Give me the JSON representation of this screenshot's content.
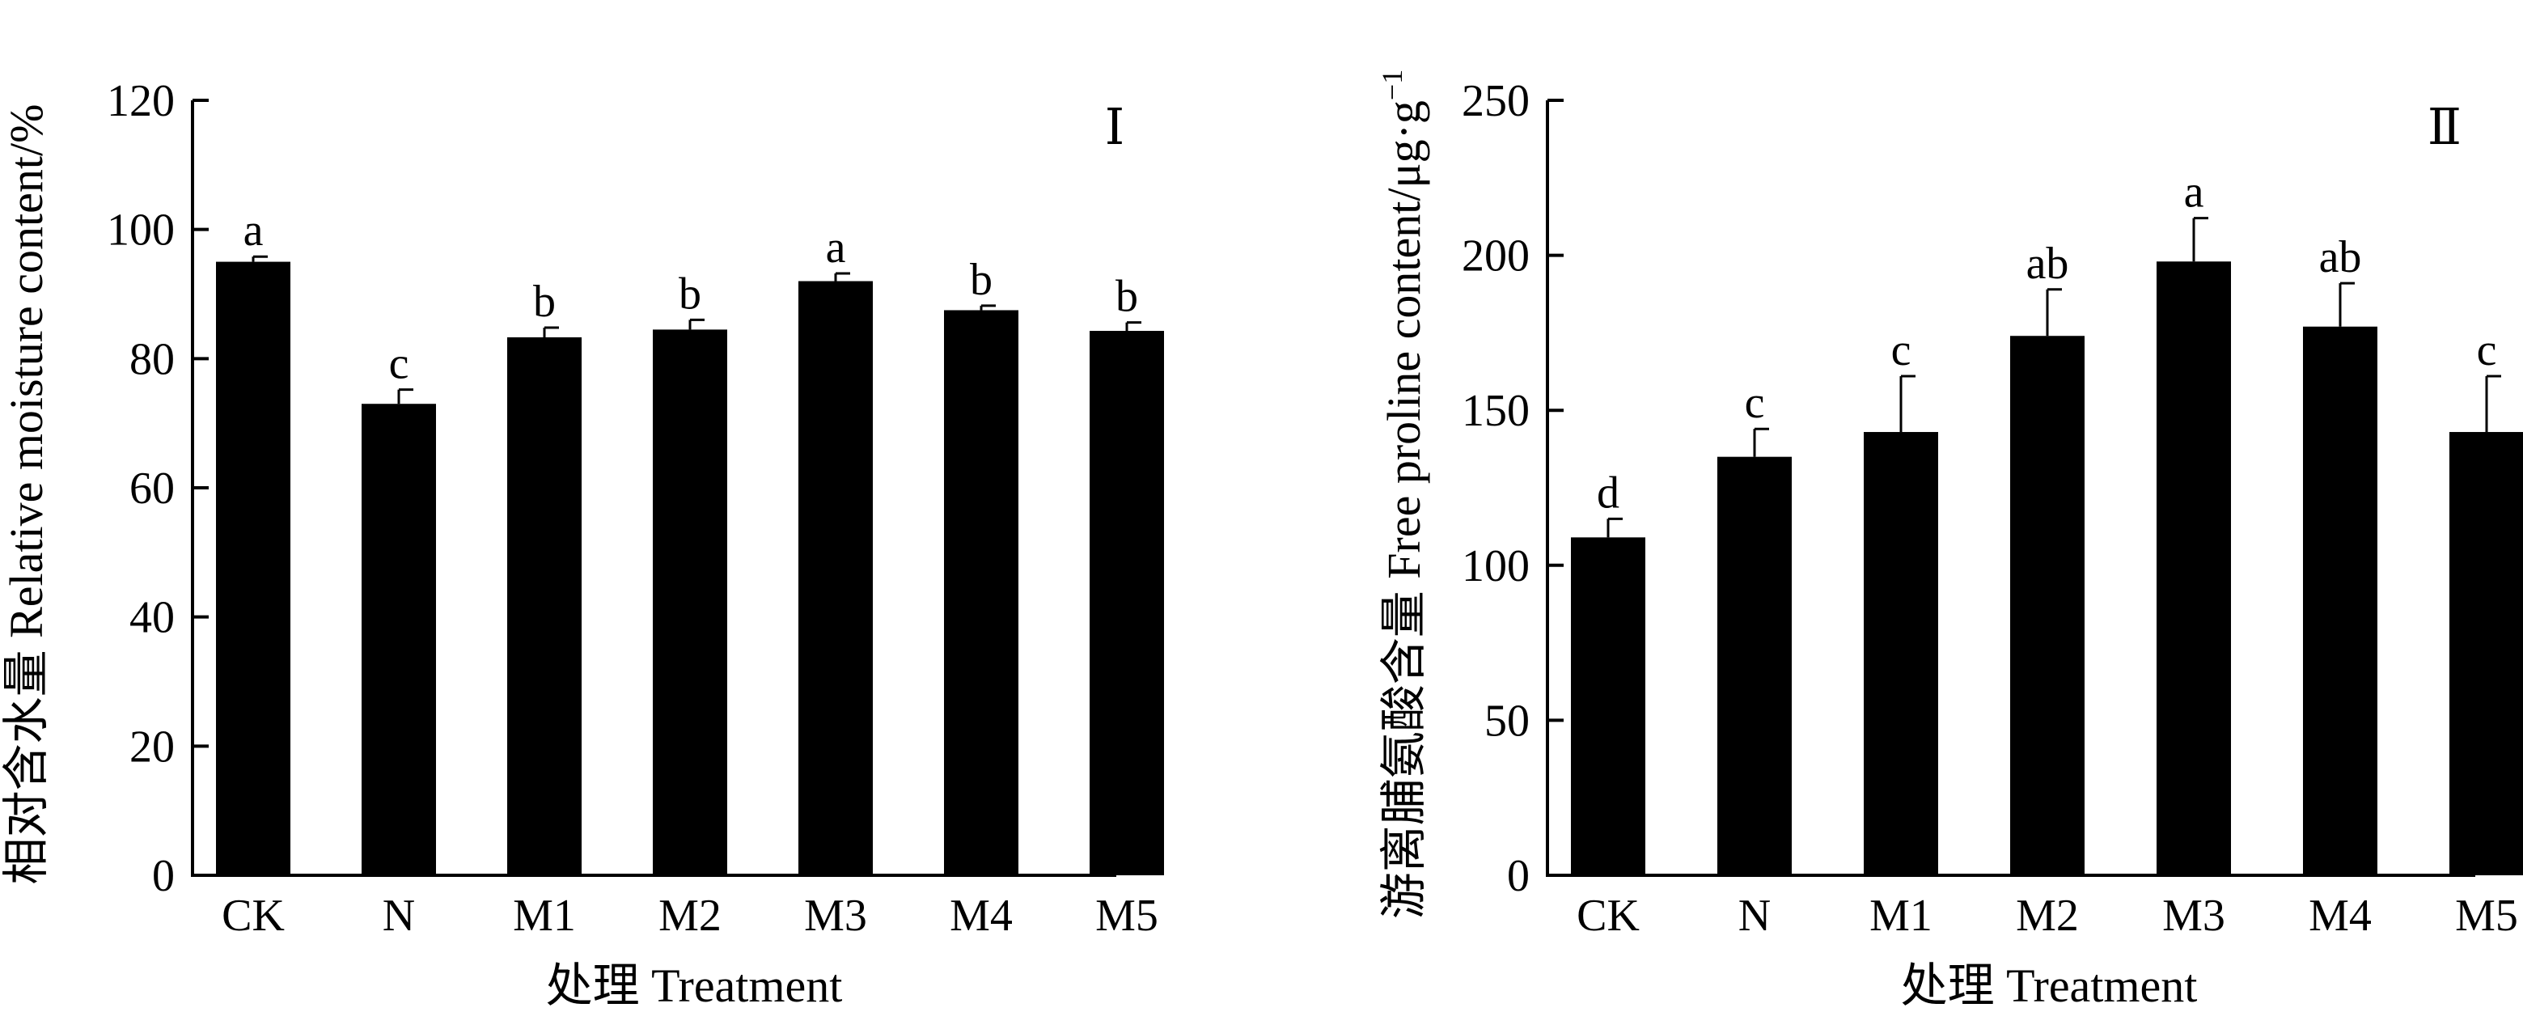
{
  "chart_data": [
    {
      "type": "bar",
      "panel_label": "Ⅰ",
      "categories": [
        "CK",
        "N",
        "M1",
        "M2",
        "M3",
        "M4",
        "M5"
      ],
      "values": [
        95.0,
        73.0,
        83.3,
        84.5,
        92.0,
        87.5,
        84.3
      ],
      "errors": [
        0.8,
        2.2,
        1.5,
        1.5,
        1.2,
        0.7,
        1.3
      ],
      "significance": [
        "a",
        "c",
        "b",
        "b",
        "a",
        "b",
        "b"
      ],
      "xlabel": "处理 Treatment",
      "ylabel": "相对含水量 Relative moisture content/%",
      "ylim": [
        0,
        120
      ],
      "yticks": [
        0,
        20,
        40,
        60,
        80,
        100,
        120
      ],
      "grid": false,
      "bar_color": "#000000"
    },
    {
      "type": "bar",
      "panel_label": "Ⅱ",
      "categories": [
        "CK",
        "N",
        "M1",
        "M2",
        "M3",
        "M4",
        "M5"
      ],
      "values": [
        109,
        135,
        143,
        174,
        198,
        177,
        143
      ],
      "errors": [
        6,
        9,
        18,
        15,
        14,
        14,
        18
      ],
      "significance": [
        "d",
        "c",
        "c",
        "ab",
        "a",
        "ab",
        "c"
      ],
      "xlabel": "处理 Treatment",
      "ylabel": "游离脯氨酸含量 Free proline content/μg·g",
      "ylabel_sup": "−1",
      "ylim": [
        0,
        250
      ],
      "yticks": [
        0,
        50,
        100,
        150,
        200,
        250
      ],
      "grid": false,
      "bar_color": "#000000"
    }
  ]
}
